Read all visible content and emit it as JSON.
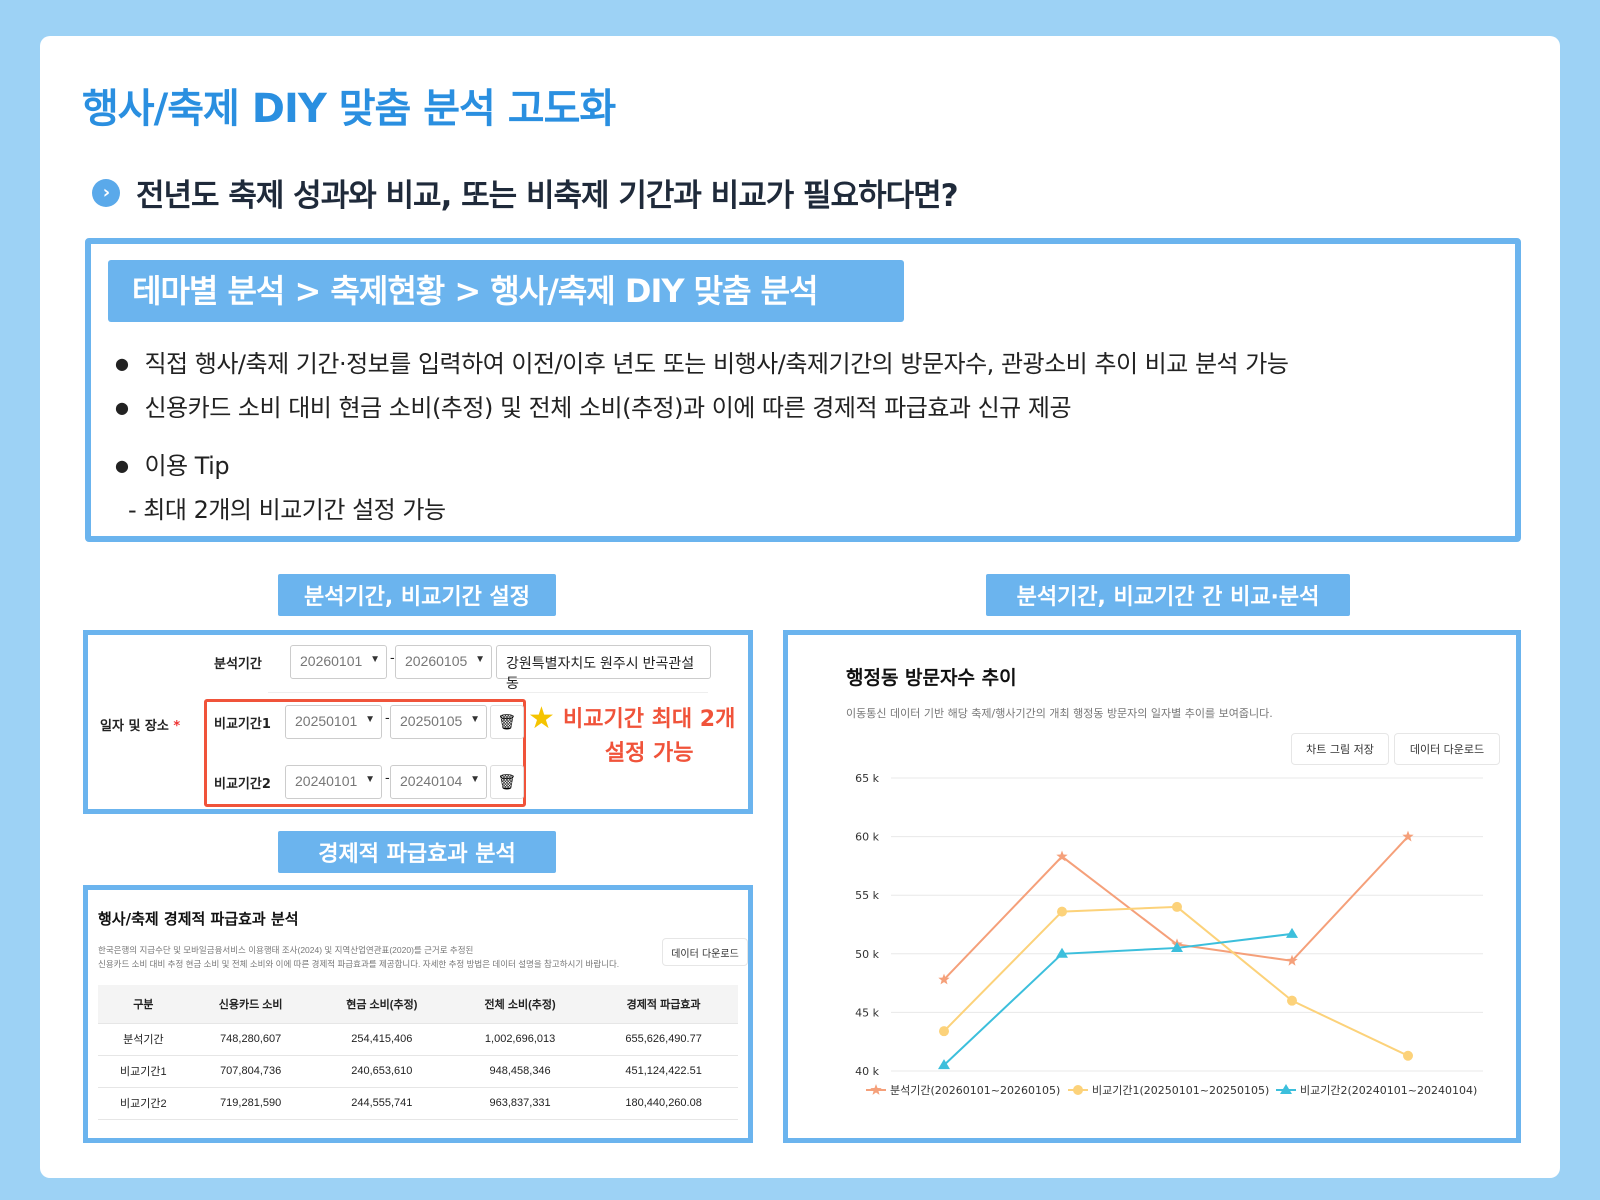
{
  "title": "행사/축제 DIY 맞춤 분석 고도화",
  "subtitle": "전년도 축제 성과와 비교, 또는 비축제 기간과 비교가 필요하다면?",
  "breadcrumb": "테마별 분석 > 축제현황 > 행사/축제 DIY 맞춤 분석",
  "bullets": [
    "직접 행사/축제 기간·정보를 입력하여 이전/이후 년도 또는 비행사/축제기간의 방문자수, 관광소비 추이 비교 분석 가능",
    "신용카드 소비 대비 현금 소비(추정) 및 전체 소비(추정)과 이에 따른 경제적 파급효과 신규 제공",
    "이용 Tip"
  ],
  "tip": "- 최대 2개의 비교기간 설정 가능",
  "labels": {
    "settings": "분석기간, 비교기간 설정",
    "econ": "경제적 파급효과 분석",
    "compare": "분석기간, 비교기간 간 비교·분석"
  },
  "form": {
    "field_label": "일자 및 장소",
    "required": "*",
    "analysis_label": "분석기간",
    "a_start": "20260101",
    "a_end": "20260105",
    "location": "강원특별자치도 원주시 반곡관설동",
    "c1_label": "비교기간1",
    "c1_start": "20250101",
    "c1_end": "20250105",
    "c2_label": "비교기간2",
    "c2_start": "20240101",
    "c2_end": "20240104",
    "sep": "-",
    "note1": "비교기간 최대 2개",
    "note2": "설정 가능"
  },
  "econ": {
    "title": "행사/축제 경제적 파급효과 분석",
    "desc1": "한국은행의 지급수단 및 모바일금융서비스 이용행태 조사(2024) 및 지역산업연관표(2020)를 근거로 추정된",
    "desc2": "신용카드 소비 대비 추정 현금 소비 및 전체 소비와 이에 따른 경제적 파급효과를 제공합니다. 자세한 추정 방법은 데이터 설명을 참고하시기 바랍니다.",
    "download": "데이터 다운로드",
    "headers": [
      "구분",
      "신용카드 소비",
      "현금 소비(추정)",
      "전체 소비(추정)",
      "경제적 파급효과"
    ],
    "rows": [
      [
        "분석기간",
        "748,280,607",
        "254,415,406",
        "1,002,696,013",
        "655,626,490.77"
      ],
      [
        "비교기간1",
        "707,804,736",
        "240,653,610",
        "948,458,346",
        "451,124,422.51"
      ],
      [
        "비교기간2",
        "719,281,590",
        "244,555,741",
        "963,837,331",
        "180,440,260.08"
      ]
    ]
  },
  "chart": {
    "title": "행정동 방문자수 추이",
    "desc": "이동통신 데이터 기반 해당 축제/행사기간의 개최 행정동 방문자의 일자별 추이를 보여줍니다.",
    "save": "차트 그림 저장",
    "download": "데이터 다운로드"
  },
  "chart_data": {
    "type": "line",
    "ylim": [
      40000,
      65000
    ],
    "yticks": [
      "40 k",
      "45 k",
      "50 k",
      "55 k",
      "60 k",
      "65 k"
    ],
    "grid": true,
    "legend": "bottom",
    "series": [
      {
        "name": "분석기간(20260101~20260105)",
        "color": "#f5a07a",
        "marker": "star",
        "values": [
          47800,
          58300,
          50800,
          49400,
          60000
        ]
      },
      {
        "name": "비교기간1(20250101~20250105)",
        "color": "#fcd27a",
        "marker": "circle",
        "values": [
          43400,
          53600,
          54000,
          46000,
          41300
        ]
      },
      {
        "name": "비교기간2(20240101~20240104)",
        "color": "#3cbfdc",
        "marker": "triangle",
        "values": [
          40500,
          50000,
          50500,
          51700
        ]
      }
    ]
  }
}
